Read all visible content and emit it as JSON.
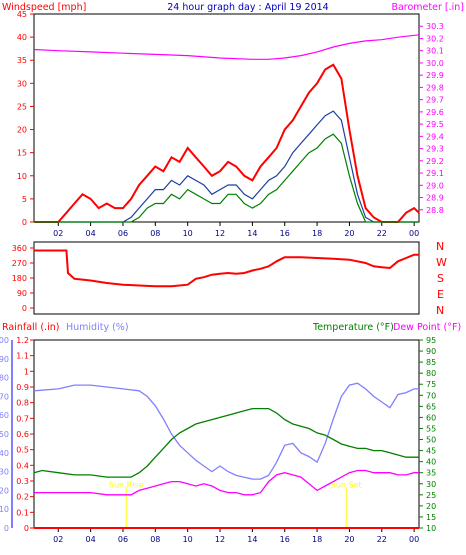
{
  "colors": {
    "panel_bg": "#ffffff",
    "wind": "#ff0000",
    "gust_avg": "#1e3fa0",
    "wind_avg": "#008000",
    "barometer": "#ff00ff",
    "direction": "#ff0000",
    "rain": "#ff0000",
    "humidity": "#8080ff",
    "temperature": "#008000",
    "dewpoint": "#ff00ff",
    "sun": "#ffff00",
    "title": "#0000c0",
    "axis": "#000000"
  },
  "header": {
    "left_label": "Windspeed [mph]",
    "title": "24 hour graph day : April 19 2014",
    "right_label": "Barometer [.in]"
  },
  "bottom_header": {
    "rain_label": "Rainfall (.in)",
    "humidity_label": "Humidity (%)",
    "temp_label": "Temperature (°F)",
    "dew_label": "Dew Point (°F)"
  },
  "compass": [
    "N",
    "W",
    "S",
    "E",
    "N"
  ],
  "sun_events": [
    {
      "label": "Sun Rise",
      "x_hour": 6.2
    },
    {
      "label": "Sun Set",
      "x_hour": 19.8
    }
  ],
  "chart_data": [
    {
      "type": "line",
      "title": "24 hour graph day : April 19 2014",
      "x_ticks": [
        "02",
        "04",
        "06",
        "08",
        "10",
        "12",
        "14",
        "16",
        "18",
        "20",
        "22",
        "00"
      ],
      "x_range_hours": [
        0.5,
        24.3
      ],
      "left_axis": {
        "label": "Windspeed [mph]",
        "ylim": [
          0,
          45
        ],
        "ticks": [
          0,
          5,
          10,
          15,
          20,
          25,
          30,
          35,
          40,
          45
        ]
      },
      "right_axis": {
        "label": "Barometer [.in]",
        "ylim": [
          28.7,
          30.4
        ],
        "ticks": [
          28.8,
          28.9,
          29.0,
          29.1,
          29.2,
          29.3,
          29.4,
          29.5,
          29.6,
          29.7,
          29.8,
          29.9,
          30.0,
          30.1,
          30.2,
          30.3
        ]
      },
      "series": [
        {
          "name": "Windspeed [mph]",
          "color": "#ff0000",
          "x": [
            0.5,
            2,
            2.5,
            3,
            3.5,
            4,
            4.5,
            5,
            5.5,
            6,
            6.5,
            7,
            7.5,
            8,
            8.5,
            9,
            9.5,
            10,
            10.5,
            11,
            11.5,
            12,
            12.5,
            13,
            13.5,
            14,
            14.5,
            15,
            15.5,
            16,
            16.5,
            17,
            17.5,
            18,
            18.5,
            19,
            19.5,
            20,
            20.5,
            21,
            21.5,
            22,
            22.5,
            23,
            23.5,
            24,
            24.3
          ],
          "y": [
            0,
            0,
            2,
            4,
            6,
            5,
            3,
            4,
            3,
            3,
            5,
            8,
            10,
            12,
            11,
            14,
            13,
            16,
            14,
            12,
            10,
            11,
            13,
            12,
            10,
            9,
            12,
            14,
            16,
            20,
            22,
            25,
            28,
            30,
            33,
            34,
            31,
            20,
            10,
            3,
            1,
            0,
            0,
            0,
            2,
            3,
            2
          ]
        },
        {
          "name": "Gust average",
          "color": "#1e3fa0",
          "x": [
            0.5,
            6,
            6.5,
            7,
            7.5,
            8,
            8.5,
            9,
            9.5,
            10,
            10.5,
            11,
            11.5,
            12,
            12.5,
            13,
            13.5,
            14,
            14.5,
            15,
            15.5,
            16,
            16.5,
            17,
            17.5,
            18,
            18.5,
            19,
            19.5,
            20,
            20.5,
            21,
            21.5,
            24.3
          ],
          "y": [
            0,
            0,
            1,
            3,
            5,
            7,
            7,
            9,
            8,
            10,
            9,
            8,
            6,
            7,
            8,
            8,
            6,
            5,
            7,
            9,
            10,
            12,
            15,
            17,
            19,
            21,
            23,
            24,
            22,
            14,
            6,
            1,
            0,
            0
          ]
        },
        {
          "name": "Wind average",
          "color": "#008000",
          "x": [
            0.5,
            6.5,
            7,
            7.5,
            8,
            8.5,
            9,
            9.5,
            10,
            10.5,
            11,
            11.5,
            12,
            12.5,
            13,
            13.5,
            14,
            14.5,
            15,
            15.5,
            16,
            16.5,
            17,
            17.5,
            18,
            18.5,
            19,
            19.5,
            20,
            20.5,
            21,
            24.3
          ],
          "y": [
            0,
            0,
            1,
            3,
            4,
            4,
            6,
            5,
            7,
            6,
            5,
            4,
            4,
            6,
            6,
            4,
            3,
            4,
            6,
            7,
            9,
            11,
            13,
            15,
            16,
            18,
            19,
            17,
            10,
            4,
            0,
            0
          ]
        },
        {
          "name": "Barometer [.in]",
          "axis": "right",
          "color": "#ff00ff",
          "x": [
            0.5,
            2,
            4,
            6,
            8,
            10,
            12,
            14,
            15,
            16,
            17,
            18,
            19,
            20,
            21,
            22,
            23,
            24.3
          ],
          "y": [
            30.11,
            30.1,
            30.09,
            30.08,
            30.07,
            30.06,
            30.04,
            30.03,
            30.03,
            30.04,
            30.06,
            30.09,
            30.13,
            30.16,
            30.18,
            30.19,
            30.21,
            30.23
          ]
        }
      ]
    },
    {
      "type": "line",
      "y_ticks": [
        0,
        90,
        180,
        270,
        360
      ],
      "ylim": [
        0,
        360
      ],
      "series": [
        {
          "name": "Wind direction",
          "color": "#ff0000",
          "x": [
            0.5,
            1.5,
            2.5,
            2.6,
            3,
            4,
            5,
            6,
            7,
            8,
            9,
            10,
            10.5,
            11,
            11.5,
            12,
            12.5,
            13,
            13.5,
            14,
            14.5,
            15,
            15.5,
            16,
            17,
            18,
            19,
            20,
            21,
            21.5,
            22,
            22.5,
            23,
            23.5,
            24,
            24.3
          ],
          "y": [
            345,
            345,
            345,
            210,
            175,
            165,
            150,
            140,
            135,
            130,
            130,
            140,
            175,
            185,
            200,
            205,
            210,
            205,
            210,
            225,
            235,
            250,
            280,
            305,
            305,
            300,
            295,
            290,
            270,
            250,
            245,
            240,
            280,
            300,
            320,
            320
          ]
        }
      ]
    },
    {
      "type": "line",
      "x_ticks": [
        "02",
        "04",
        "06",
        "08",
        "10",
        "12",
        "14",
        "16",
        "18",
        "20",
        "22",
        "00"
      ],
      "rain_axis": {
        "label": "Rainfall (.in)",
        "ylim": [
          0,
          1.2
        ],
        "ticks": [
          0,
          0.1,
          0.2,
          0.3,
          0.4,
          0.5,
          0.6,
          0.7,
          0.8,
          0.9,
          1,
          1.1,
          1.2
        ]
      },
      "humidity_axis": {
        "label": "Humidity (%)",
        "ylim": [
          0,
          100
        ],
        "ticks": [
          0,
          10,
          20,
          30,
          40,
          50,
          60,
          70,
          80,
          90,
          100
        ]
      },
      "temp_axis": {
        "label": "Temperature (°F)",
        "ylim": [
          10,
          95
        ],
        "ticks": [
          10,
          15,
          20,
          25,
          30,
          35,
          40,
          45,
          50,
          55,
          60,
          65,
          70,
          75,
          80,
          85,
          90,
          95
        ]
      },
      "series": [
        {
          "name": "Rainfall (.in)",
          "axis": "rain",
          "color": "#ff0000",
          "x": [
            0.5,
            24.3
          ],
          "y": [
            0,
            0
          ]
        },
        {
          "name": "Humidity (%)",
          "axis": "humidity",
          "color": "#8080ff",
          "x": [
            0.5,
            2,
            3,
            4,
            5,
            6,
            7,
            7.5,
            8,
            8.5,
            9,
            9.5,
            10,
            10.5,
            11,
            11.5,
            12,
            12.5,
            13,
            13.5,
            14,
            14.5,
            15,
            15.5,
            16,
            16.5,
            17,
            17.5,
            18,
            18.5,
            19,
            19.5,
            20,
            20.5,
            21,
            21.5,
            22,
            22.5,
            23,
            23.5,
            24,
            24.3
          ],
          "y": [
            73,
            74,
            76,
            76,
            75,
            74,
            73,
            70,
            65,
            58,
            50,
            44,
            40,
            36,
            33,
            30,
            33,
            30,
            28,
            27,
            26,
            26,
            28,
            35,
            44,
            45,
            40,
            38,
            35,
            45,
            58,
            70,
            76,
            77,
            74,
            70,
            67,
            64,
            71,
            72,
            74,
            74
          ]
        },
        {
          "name": "Temperature (°F)",
          "axis": "temp",
          "color": "#008000",
          "x": [
            0.5,
            1,
            2,
            3,
            4,
            5,
            6,
            6.5,
            7,
            7.5,
            8,
            8.5,
            9,
            9.5,
            10,
            10.5,
            11,
            11.5,
            12,
            12.5,
            13,
            13.5,
            14,
            14.5,
            15,
            15.5,
            16,
            16.5,
            17,
            17.5,
            18,
            18.5,
            19,
            19.5,
            20,
            20.5,
            21,
            21.5,
            22,
            22.5,
            23,
            23.5,
            24,
            24.3
          ],
          "y": [
            35,
            36,
            35,
            34,
            34,
            33,
            33,
            33,
            35,
            38,
            42,
            46,
            50,
            53,
            55,
            57,
            58,
            59,
            60,
            61,
            62,
            63,
            64,
            64,
            64,
            62,
            59,
            57,
            56,
            55,
            53,
            52,
            50,
            48,
            47,
            46,
            46,
            45,
            45,
            44,
            43,
            42,
            42,
            42
          ]
        },
        {
          "name": "Dew Point (°F)",
          "axis": "temp",
          "color": "#ff00ff",
          "x": [
            0.5,
            1,
            2,
            3,
            4,
            5,
            6,
            6.5,
            7,
            7.5,
            8,
            8.5,
            9,
            9.5,
            10,
            10.5,
            11,
            11.5,
            12,
            12.5,
            13,
            13.5,
            14,
            14.5,
            15,
            15.5,
            16,
            16.5,
            17,
            17.5,
            18,
            18.5,
            19,
            19.5,
            20,
            20.5,
            21,
            21.5,
            22,
            22.5,
            23,
            23.5,
            24,
            24.3
          ],
          "y": [
            26,
            26,
            26,
            26,
            26,
            25,
            25,
            25,
            27,
            28,
            29,
            30,
            31,
            31,
            30,
            29,
            30,
            29,
            27,
            26,
            26,
            25,
            25,
            26,
            31,
            34,
            35,
            34,
            33,
            30,
            27,
            29,
            31,
            33,
            35,
            36,
            36,
            35,
            35,
            35,
            34,
            34,
            35,
            35
          ]
        }
      ]
    }
  ]
}
